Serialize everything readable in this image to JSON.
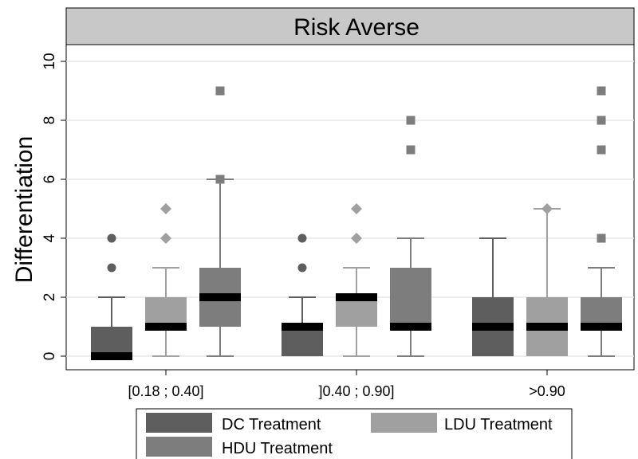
{
  "chart_data": {
    "type": "box",
    "title": "Risk Averse",
    "ylabel": "Differentiation",
    "xlabel": "",
    "ylim": [
      -0.5,
      10.5
    ],
    "yticks": [
      0,
      2,
      4,
      6,
      8,
      10
    ],
    "grid": true,
    "legend_position": "bottom",
    "categories": [
      "[0.18 ; 0.40]",
      "]0.40 ; 0.90]",
      ">0.90"
    ],
    "series": [
      {
        "name": "DC Treatment",
        "color": "#5e5e5e",
        "outlier_marker": "circle",
        "boxes": [
          {
            "q1": 0,
            "median": 0,
            "q3": 1,
            "whisker_low": 0,
            "whisker_high": 2,
            "outliers": [
              3,
              4
            ]
          },
          {
            "q1": 0,
            "median": 1,
            "q3": 1,
            "whisker_low": 0,
            "whisker_high": 2,
            "outliers": [
              3,
              4
            ]
          },
          {
            "q1": 0,
            "median": 1,
            "q3": 2,
            "whisker_low": 0,
            "whisker_high": 4,
            "outliers": []
          }
        ]
      },
      {
        "name": "LDU Treatment",
        "color": "#a0a0a0",
        "outlier_marker": "diamond",
        "boxes": [
          {
            "q1": 1,
            "median": 1,
            "q3": 2,
            "whisker_low": 0,
            "whisker_high": 3,
            "outliers": [
              4,
              5
            ]
          },
          {
            "q1": 1,
            "median": 2,
            "q3": 2,
            "whisker_low": 0,
            "whisker_high": 3,
            "outliers": [
              4,
              5
            ]
          },
          {
            "q1": 0,
            "median": 1,
            "q3": 2,
            "whisker_low": 0,
            "whisker_high": 5,
            "outliers": [
              5
            ]
          }
        ]
      },
      {
        "name": "HDU Treatment",
        "color": "#7d7d7d",
        "outlier_marker": "square",
        "boxes": [
          {
            "q1": 1,
            "median": 2,
            "q3": 3,
            "whisker_low": 0,
            "whisker_high": 6,
            "outliers": [
              6,
              9
            ]
          },
          {
            "q1": 1,
            "median": 1,
            "q3": 3,
            "whisker_low": 0,
            "whisker_high": 4,
            "outliers": [
              7,
              8
            ]
          },
          {
            "q1": 1,
            "median": 1,
            "q3": 2,
            "whisker_low": 0,
            "whisker_high": 3,
            "outliers": [
              4,
              7,
              8,
              9
            ]
          }
        ]
      }
    ]
  }
}
